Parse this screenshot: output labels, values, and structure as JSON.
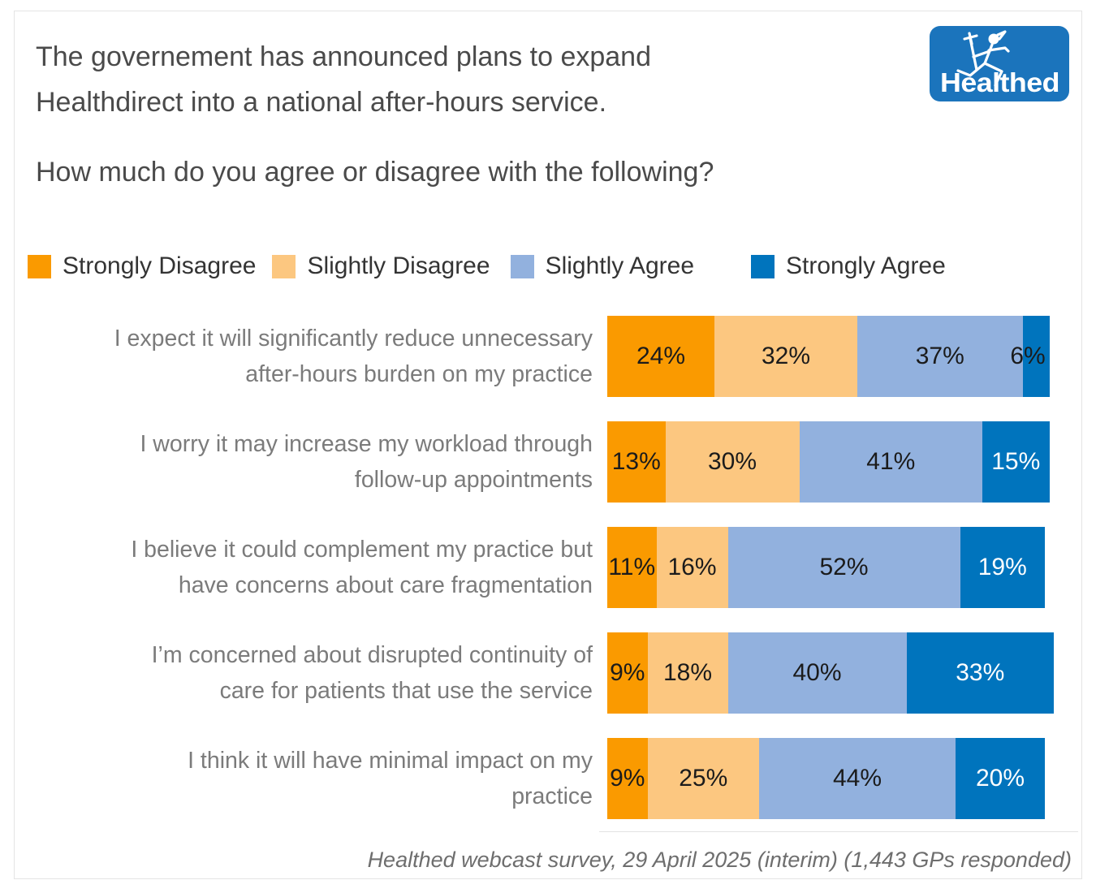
{
  "page": {
    "title_lines": [
      "The governement has announced plans to expand",
      "Healthdirect into a national after-hours service."
    ],
    "subtitle": "How much do you agree or disagree with the following?",
    "footer": "Healthed webcast survey, 29 April 2025 (interim) (1,443 GPs responded)",
    "logo_text": "Healthed"
  },
  "colors": {
    "strongly_disagree": "#FA9A00",
    "slightly_disagree": "#FCC780",
    "slightly_agree": "#92B1DE",
    "strongly_agree": "#0074BD",
    "logo_blue": "#1B74BC",
    "title_text": "#4A4A4A",
    "category_text": "#7B7B7B",
    "footer_text": "#6E6E6E",
    "border": "#E4E4E4",
    "label_dark": "#1B1B1B",
    "label_light": "#FFFFFF"
  },
  "chart_data": {
    "type": "bar",
    "stacked": true,
    "orientation": "horizontal",
    "unit": "percent",
    "legend_position": "top",
    "xlim": [
      0,
      100
    ],
    "grid": false,
    "categories": [
      "I expect it will significantly reduce unnecessary after-hours burden on my practice",
      "I worry it may increase my workload through follow-up appointments",
      "I believe it could complement my practice but have concerns about care fragmentation",
      "I’m concerned about disrupted continuity of care for patients that use the service",
      "I think it will have minimal impact on my practice"
    ],
    "category_lines": [
      [
        "I expect it will significantly reduce unnecessary",
        "after-hours burden on my practice"
      ],
      [
        "I worry it may increase my workload through",
        "follow-up appointments"
      ],
      [
        "I believe it could complement my practice but",
        "have concerns about care fragmentation"
      ],
      [
        "I’m concerned about disrupted continuity of",
        "care for patients that use the service"
      ],
      [
        "I think it will have minimal impact on my",
        "practice"
      ]
    ],
    "series": [
      {
        "name": "Strongly Disagree",
        "color": "#FA9A00",
        "values": [
          24,
          13,
          11,
          9,
          9
        ]
      },
      {
        "name": "Slightly Disagree",
        "color": "#FCC780",
        "values": [
          32,
          30,
          16,
          18,
          25
        ]
      },
      {
        "name": "Slightly Agree",
        "color": "#92B1DE",
        "values": [
          37,
          41,
          52,
          40,
          44
        ]
      },
      {
        "name": "Strongly Agree",
        "color": "#0074BD",
        "values": [
          6,
          15,
          19,
          33,
          20
        ]
      }
    ]
  }
}
